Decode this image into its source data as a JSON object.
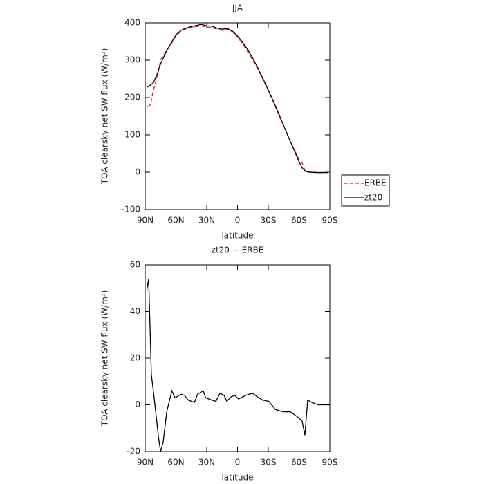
{
  "chart_data": [
    {
      "type": "line",
      "title": "JJA",
      "x_label": "latitude",
      "y_label": "TOA clearsky net SW flux (W/m²)",
      "x": [
        88,
        85,
        82,
        78,
        75,
        70,
        65,
        60,
        55,
        50,
        45,
        40,
        35,
        30,
        25,
        20,
        15,
        10,
        5,
        0,
        -5,
        -10,
        -15,
        -20,
        -25,
        -30,
        -35,
        -40,
        -45,
        -50,
        -55,
        -60,
        -63,
        -66,
        -70,
        -75,
        -80,
        -88
      ],
      "series": [
        {
          "name": "ERBE",
          "color": "#e0201b",
          "line_style": "dashed",
          "values": [
            175,
            180,
            220,
            260,
            300,
            322,
            342,
            365,
            378,
            384,
            388,
            390,
            392,
            388,
            387,
            383,
            380,
            383,
            376,
            362,
            344,
            322,
            300,
            275,
            247,
            218,
            188,
            155,
            124,
            92,
            62,
            34,
            25,
            3,
            1,
            0,
            -1,
            -1
          ]
        },
        {
          "name": "zt20",
          "color": "#000000",
          "line_style": "solid",
          "values": [
            228,
            233,
            240,
            265,
            290,
            320,
            345,
            368,
            380,
            386,
            390,
            393,
            396,
            392,
            391,
            386,
            383,
            385,
            378,
            365,
            348,
            328,
            305,
            278,
            250,
            220,
            190,
            158,
            125,
            92,
            60,
            28,
            12,
            2,
            0,
            -1,
            -1,
            -1
          ]
        }
      ],
      "xlim": [
        90,
        -90
      ],
      "xticks": [
        {
          "value": 90,
          "label": "90N"
        },
        {
          "value": 60,
          "label": "60N"
        },
        {
          "value": 30,
          "label": "30N"
        },
        0,
        {
          "value": -30,
          "label": "30S"
        },
        {
          "value": -60,
          "label": "60S"
        },
        {
          "value": -90,
          "label": "90S"
        }
      ],
      "ylim": [
        -100,
        400
      ],
      "yticks": [
        -100,
        0,
        100,
        200,
        300,
        400
      ],
      "legend": "right"
    },
    {
      "type": "line",
      "title": "zt20 − ERBE",
      "x_label": "latitude",
      "y_label": "TOA clearsky net SW flux (W/m²)",
      "x": [
        88.5,
        86.6,
        84,
        80.5,
        77,
        75,
        72.5,
        69,
        64,
        61,
        55,
        51.6,
        48,
        42,
        39,
        33.5,
        31,
        25,
        21,
        17,
        13,
        10.5,
        6,
        2.5,
        -1,
        -7.7,
        -14.5,
        -19,
        -24.5,
        -30.5,
        -37,
        -44.5,
        -51.5,
        -58,
        -63,
        -65.7,
        -68.4,
        -72.5,
        -78.5,
        -90
      ],
      "series": [
        {
          "color": "#000000",
          "line_style": "solid",
          "values": [
            49,
            54,
            13,
            0,
            -14,
            -20,
            -16,
            -3,
            6,
            3,
            4.5,
            4,
            2,
            1,
            4.5,
            6,
            3,
            2,
            1.5,
            5,
            4,
            1.5,
            3.5,
            4,
            2.5,
            4,
            5,
            3.5,
            2,
            1.5,
            -2,
            -3,
            -3,
            -5,
            -7,
            -13,
            2,
            1,
            0,
            0
          ]
        }
      ],
      "xlim": [
        90,
        -90
      ],
      "xticks": [
        {
          "value": 90,
          "label": "90N"
        },
        {
          "value": 60,
          "label": "60N"
        },
        {
          "value": 30,
          "label": "30N"
        },
        0,
        {
          "value": -30,
          "label": "30S"
        },
        {
          "value": -60,
          "label": "60S"
        },
        {
          "value": -90,
          "label": "90S"
        }
      ],
      "ylim": [
        -20,
        60
      ],
      "yticks": [
        -20,
        0,
        20,
        40,
        60
      ]
    }
  ]
}
